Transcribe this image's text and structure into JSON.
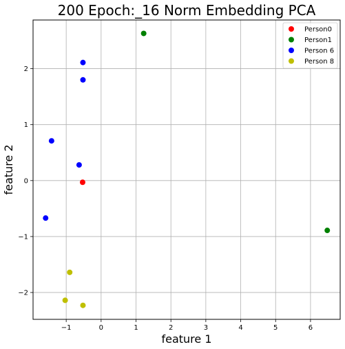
{
  "chart_data": {
    "type": "scatter",
    "title": "200 Epoch:_16 Norm Embedding PCA",
    "xlabel": "feature 1",
    "ylabel": "feature 2",
    "xlim": [
      -1.95,
      6.85
    ],
    "ylim": [
      -2.48,
      2.87
    ],
    "xticks": [
      -1,
      0,
      1,
      2,
      3,
      4,
      5,
      6
    ],
    "yticks": [
      -2,
      -1,
      0,
      1,
      2
    ],
    "grid": true,
    "legend_position": "top-right",
    "series": [
      {
        "name": "Person0",
        "color": "#ff0000",
        "points": [
          [
            -0.53,
            -0.03
          ]
        ]
      },
      {
        "name": "Person1",
        "color": "#008000",
        "points": [
          [
            1.22,
            2.63
          ],
          [
            6.48,
            -0.89
          ]
        ]
      },
      {
        "name": "Person 6",
        "color": "#0000ff",
        "points": [
          [
            -0.52,
            2.11
          ],
          [
            -0.52,
            1.8
          ],
          [
            -1.42,
            0.71
          ],
          [
            -0.63,
            0.28
          ],
          [
            -1.59,
            -0.67
          ]
        ]
      },
      {
        "name": "Person 8",
        "color": "#bfbf00",
        "points": [
          [
            -0.9,
            -1.64
          ],
          [
            -1.03,
            -2.14
          ],
          [
            -0.52,
            -2.23
          ]
        ]
      }
    ]
  }
}
